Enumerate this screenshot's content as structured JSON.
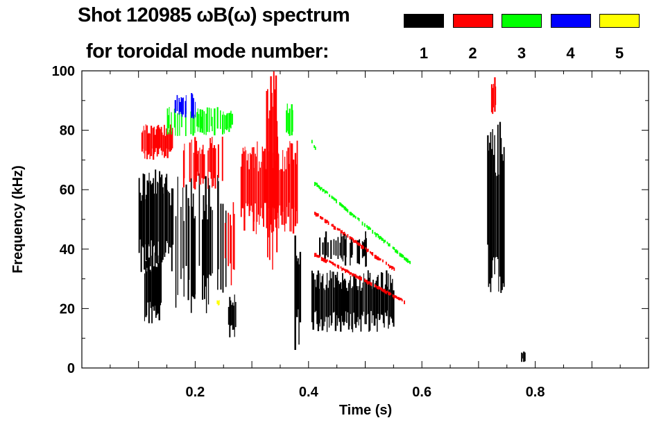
{
  "chart_data": {
    "type": "heatmap",
    "title": "Shot 120985 ωB(ω) spectrum",
    "subtitle": "for toroidal mode number:",
    "xlabel": "Time (s)",
    "ylabel": "Frequency (kHz)",
    "xlim": [
      0,
      1.0
    ],
    "ylim": [
      0,
      100
    ],
    "xticks": [
      0.2,
      0.4,
      0.6,
      0.8
    ],
    "xtick_labels": [
      "0.2",
      "0.4",
      "0.6",
      "0.8"
    ],
    "yticks": [
      0,
      20,
      40,
      60,
      80,
      100
    ],
    "ytick_labels": [
      "0",
      "20",
      "40",
      "60",
      "80",
      "100"
    ],
    "legend": [
      {
        "label": "1",
        "color": "#000000"
      },
      {
        "label": "2",
        "color": "#ff0000"
      },
      {
        "label": "3",
        "color": "#00ff00"
      },
      {
        "label": "4",
        "color": "#0000ff"
      },
      {
        "label": "5",
        "color": "#ffff00"
      }
    ],
    "blobs": [
      {
        "mode": 1,
        "t": [
          0.1,
          0.16
        ],
        "f": [
          30,
          68
        ]
      },
      {
        "mode": 1,
        "t": [
          0.11,
          0.14
        ],
        "f": [
          15,
          40
        ]
      },
      {
        "mode": 1,
        "t": [
          0.165,
          0.255
        ],
        "f": [
          18,
          66
        ],
        "sparse": true
      },
      {
        "mode": 1,
        "t": [
          0.258,
          0.272
        ],
        "f": [
          9,
          25
        ]
      },
      {
        "mode": 1,
        "t": [
          0.375,
          0.385
        ],
        "f": [
          6,
          46
        ]
      },
      {
        "mode": 1,
        "t": [
          0.405,
          0.55
        ],
        "f": [
          12,
          33
        ]
      },
      {
        "mode": 1,
        "t": [
          0.415,
          0.505
        ],
        "f": [
          34,
          46
        ],
        "sparse": true
      },
      {
        "mode": 1,
        "t": [
          0.715,
          0.745
        ],
        "f": [
          25,
          84
        ]
      },
      {
        "mode": 1,
        "t": [
          0.775,
          0.781
        ],
        "f": [
          2,
          6
        ]
      },
      {
        "mode": 2,
        "t": [
          0.105,
          0.16
        ],
        "f": [
          70,
          82
        ]
      },
      {
        "mode": 2,
        "t": [
          0.175,
          0.25
        ],
        "f": [
          60,
          78
        ],
        "sparse": true
      },
      {
        "mode": 2,
        "t": [
          0.252,
          0.27
        ],
        "f": [
          27,
          58
        ],
        "sparse": true
      },
      {
        "mode": 2,
        "t": [
          0.28,
          0.38
        ],
        "f": [
          45,
          77
        ]
      },
      {
        "mode": 2,
        "t": [
          0.325,
          0.345
        ],
        "f": [
          33,
          100
        ]
      },
      {
        "mode": 2,
        "t": [
          0.722,
          0.73
        ],
        "f": [
          84,
          98
        ]
      },
      {
        "mode": 3,
        "t": [
          0.15,
          0.255
        ],
        "f": [
          78,
          88
        ],
        "sparse": true
      },
      {
        "mode": 3,
        "t": [
          0.255,
          0.265
        ],
        "f": [
          79,
          88
        ]
      },
      {
        "mode": 3,
        "t": [
          0.36,
          0.38
        ],
        "f": [
          78,
          90
        ],
        "sparse": true
      },
      {
        "mode": 4,
        "t": [
          0.16,
          0.2
        ],
        "f": [
          83,
          93
        ],
        "sparse": true
      },
      {
        "mode": 5,
        "t": [
          0.238,
          0.242
        ],
        "f": [
          21,
          23
        ]
      }
    ],
    "lines": [
      {
        "mode": 2,
        "t": [
          0.41,
          0.55
        ],
        "f": [
          52,
          33
        ]
      },
      {
        "mode": 2,
        "t": [
          0.41,
          0.57
        ],
        "f": [
          38,
          22
        ]
      },
      {
        "mode": 3,
        "t": [
          0.41,
          0.58
        ],
        "f": [
          62,
          35
        ]
      },
      {
        "mode": 3,
        "t": [
          0.405,
          0.415
        ],
        "f": [
          76,
          72
        ]
      }
    ]
  }
}
